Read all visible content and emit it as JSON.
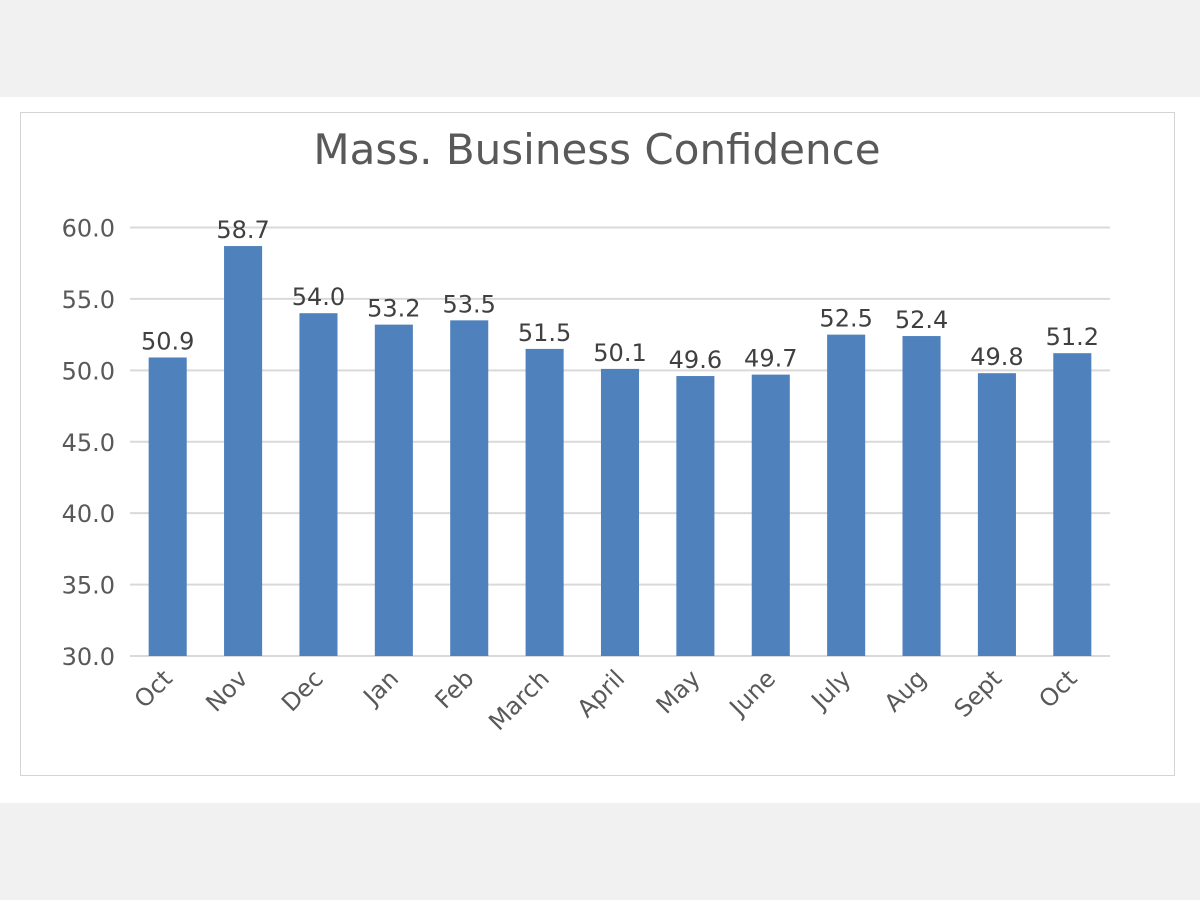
{
  "chart_data": {
    "type": "bar",
    "title": "Mass. Business Confidence",
    "xlabel": "",
    "ylabel": "",
    "categories": [
      "Oct",
      "Nov",
      "Dec",
      "Jan",
      "Feb",
      "March",
      "April",
      "May",
      "June",
      "July",
      "Aug",
      "Sept",
      "Oct"
    ],
    "values": [
      50.9,
      58.7,
      54.0,
      53.2,
      53.5,
      51.5,
      50.1,
      49.6,
      49.7,
      52.5,
      52.4,
      49.8,
      51.2
    ],
    "value_labels": [
      "50.9",
      "58.7",
      "54.0",
      "53.2",
      "53.5",
      "51.5",
      "50.1",
      "49.6",
      "49.7",
      "52.5",
      "52.4",
      "49.8",
      "51.2"
    ],
    "ylim": [
      30,
      60
    ],
    "yticks": [
      "30.0",
      "35.0",
      "40.0",
      "45.0",
      "50.0",
      "55.0",
      "60.0"
    ],
    "grid": true,
    "legend": "none",
    "bar_color": "#4f81bd",
    "grid_color": "#d9d9d9"
  }
}
